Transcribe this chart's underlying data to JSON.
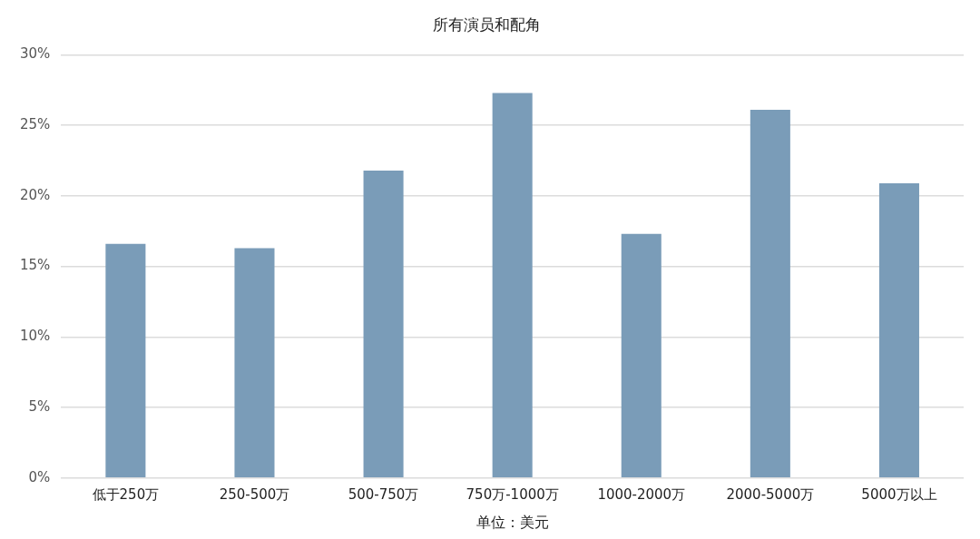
{
  "chart_data": {
    "type": "bar",
    "title": "所有演员和配角",
    "xlabel": "单位：美元",
    "categories": [
      "低于250万",
      "250-500万",
      "500-750万",
      "750万-1000万",
      "1000-2000万",
      "2000-5000万",
      "5000万以上"
    ],
    "values": [
      16.6,
      16.3,
      21.8,
      27.3,
      17.3,
      26.1,
      20.9
    ],
    "color": "#7a9cb8",
    "ylim": [
      0,
      30
    ],
    "yticks": [
      {
        "value": 0,
        "label": "0%"
      },
      {
        "value": 5,
        "label": "5%"
      },
      {
        "value": 10,
        "label": "10%"
      },
      {
        "value": 15,
        "label": "15%"
      },
      {
        "value": 20,
        "label": "20%"
      },
      {
        "value": 25,
        "label": "25%"
      },
      {
        "value": 30,
        "label": "30%"
      }
    ],
    "grid": "y"
  }
}
